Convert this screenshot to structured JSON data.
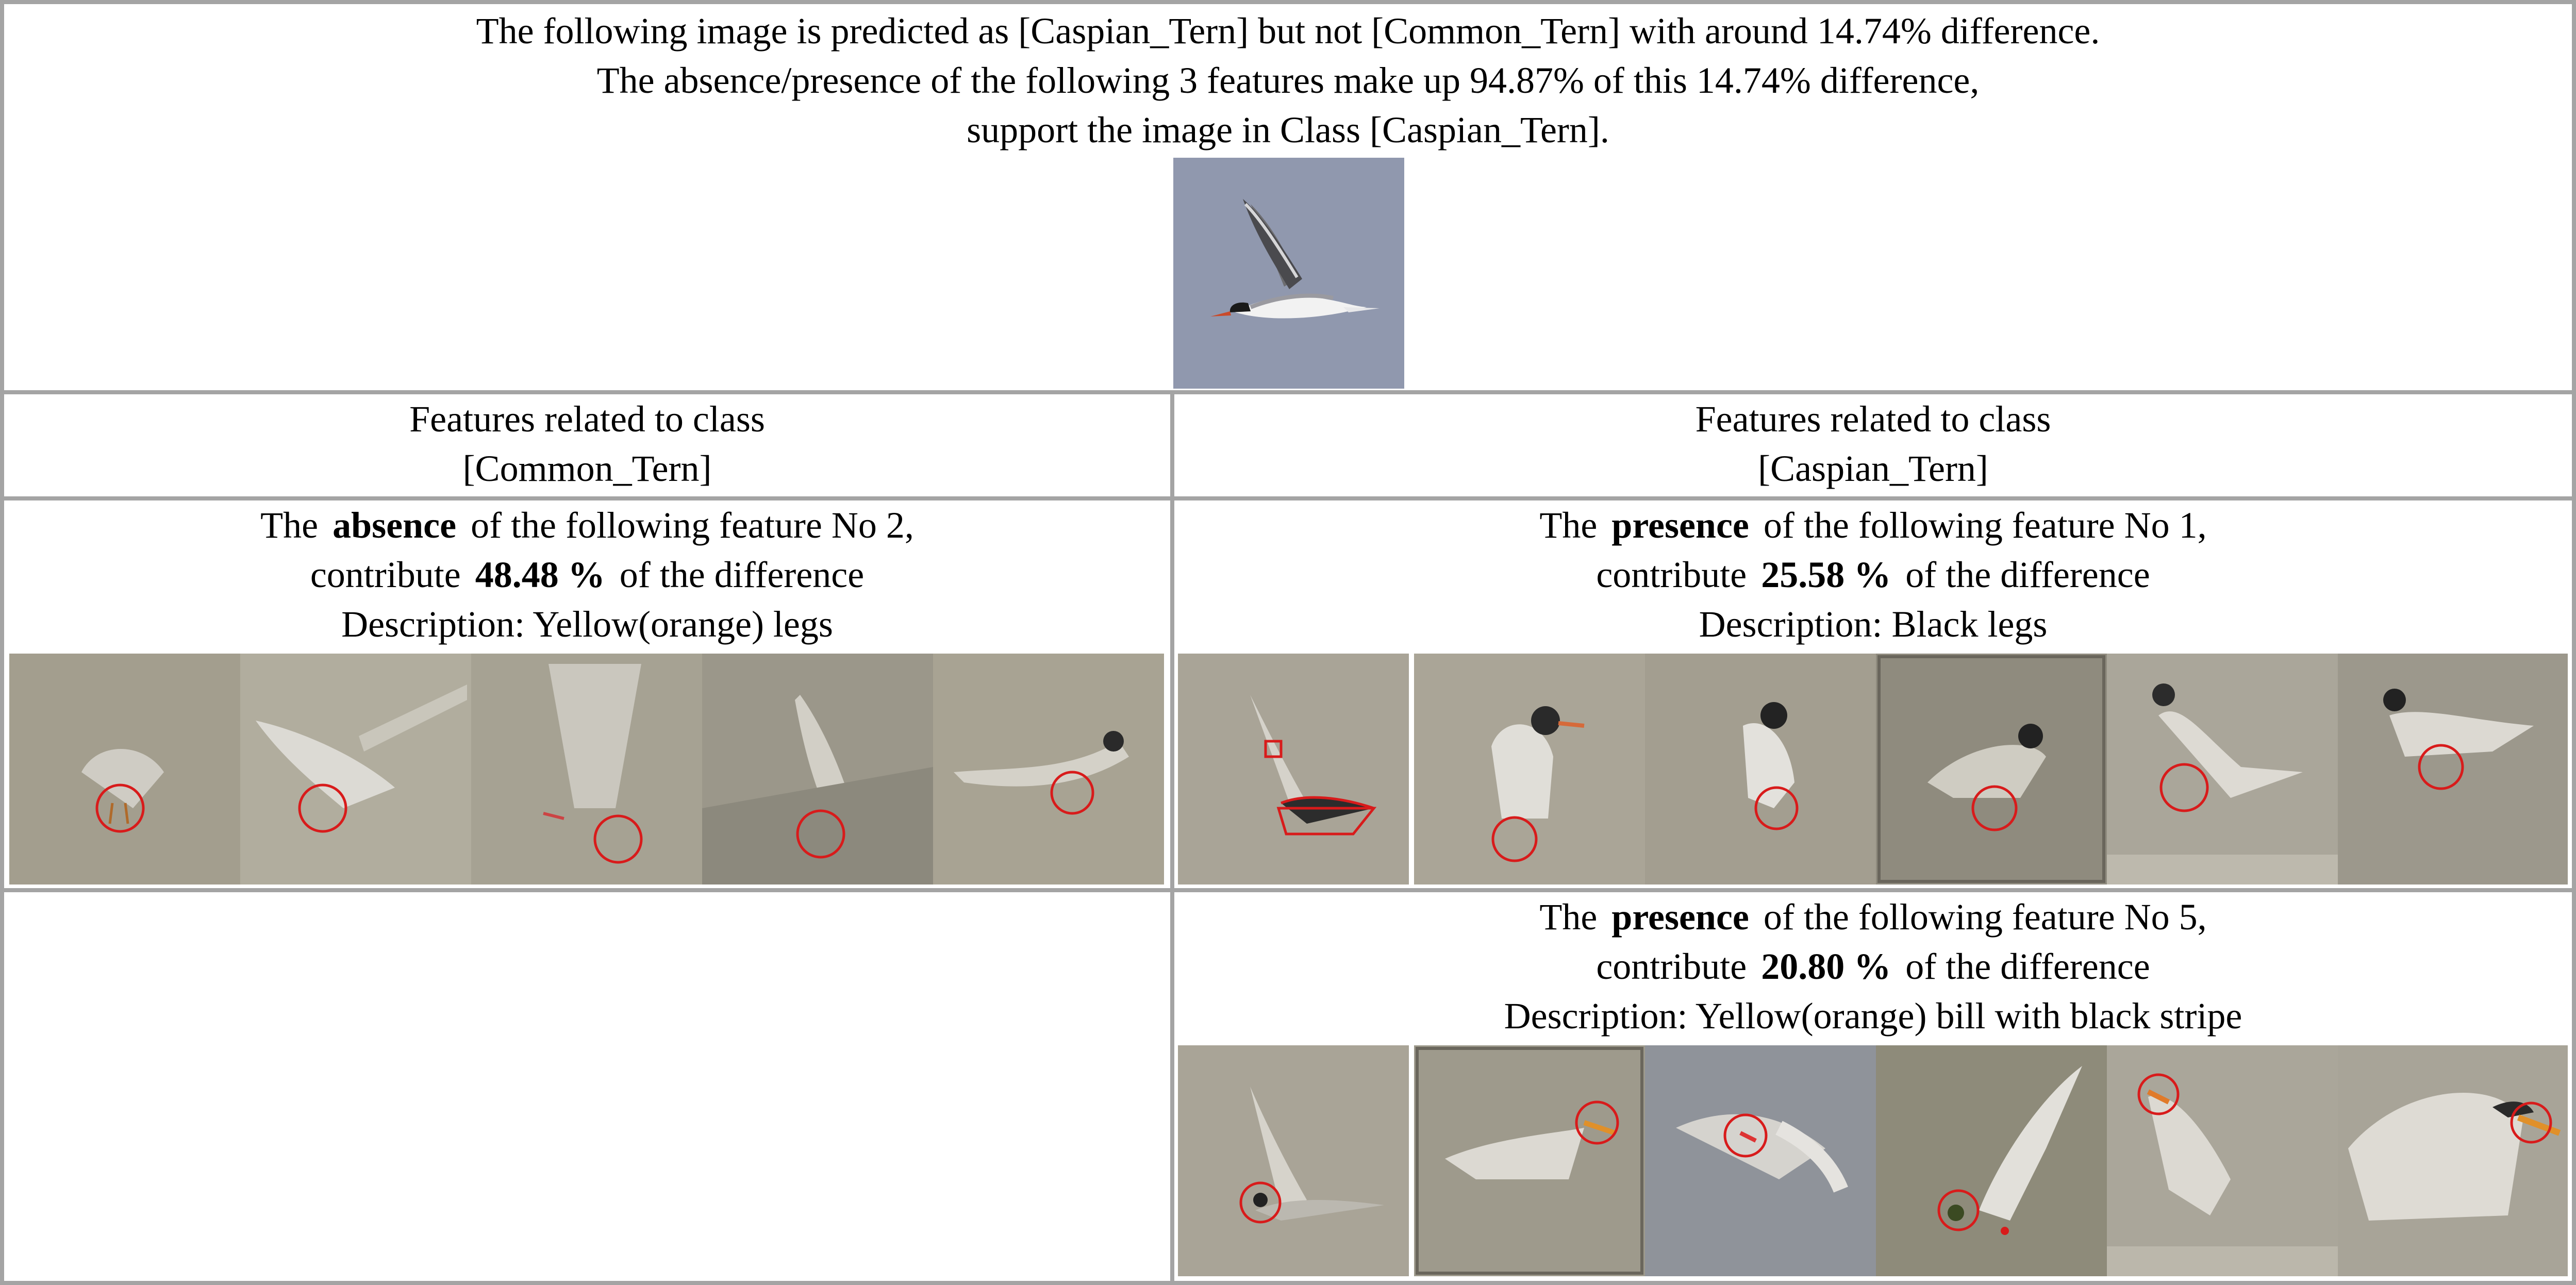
{
  "header": {
    "line1": "The following image is predicted as [Caspian_Tern] but not [Common_Tern] with around 14.74% difference.",
    "line2": "The absence/presence of the following 3 features make up 94.87% of this 14.74% difference,",
    "line3": "support the image in Class [Caspian_Tern].",
    "query_image": "tern-in-flight"
  },
  "columns": [
    {
      "heading": "Features related to class",
      "class_label": "[Common_Tern]"
    },
    {
      "heading": "Features related to class",
      "class_label": "[Caspian_Tern]"
    }
  ],
  "features": [
    {
      "lead": "The",
      "state": "absence",
      "after_state": "of the following feature No 2,",
      "contribute_word": "contribute",
      "percent": "48.48 %",
      "tail": "of the difference",
      "description": "Description: Yellow(orange) legs",
      "thumbnail_count": 5,
      "accent": "#d81b1b"
    },
    {
      "lead": "The",
      "state": "presence",
      "after_state": "of the following feature No 1,",
      "contribute_word": "contribute",
      "percent": "25.58 %",
      "tail": "of the difference",
      "description": "Description: Black legs",
      "thumbnail_count": 6,
      "accent": "#d81b1b"
    },
    {
      "lead": "The",
      "state": "presence",
      "after_state": "of the following feature No 5,",
      "contribute_word": "contribute",
      "percent": "20.80 %",
      "tail": "of the difference",
      "description": "Description: Yellow(orange) bill with black stripe",
      "thumbnail_count": 6,
      "accent": "#d81b1b"
    }
  ],
  "colors": {
    "grid_line": "#a4a4a4",
    "sky": "#8a93aa",
    "thumb_bg": "#a39e8e",
    "highlight": "#d81b1b"
  }
}
